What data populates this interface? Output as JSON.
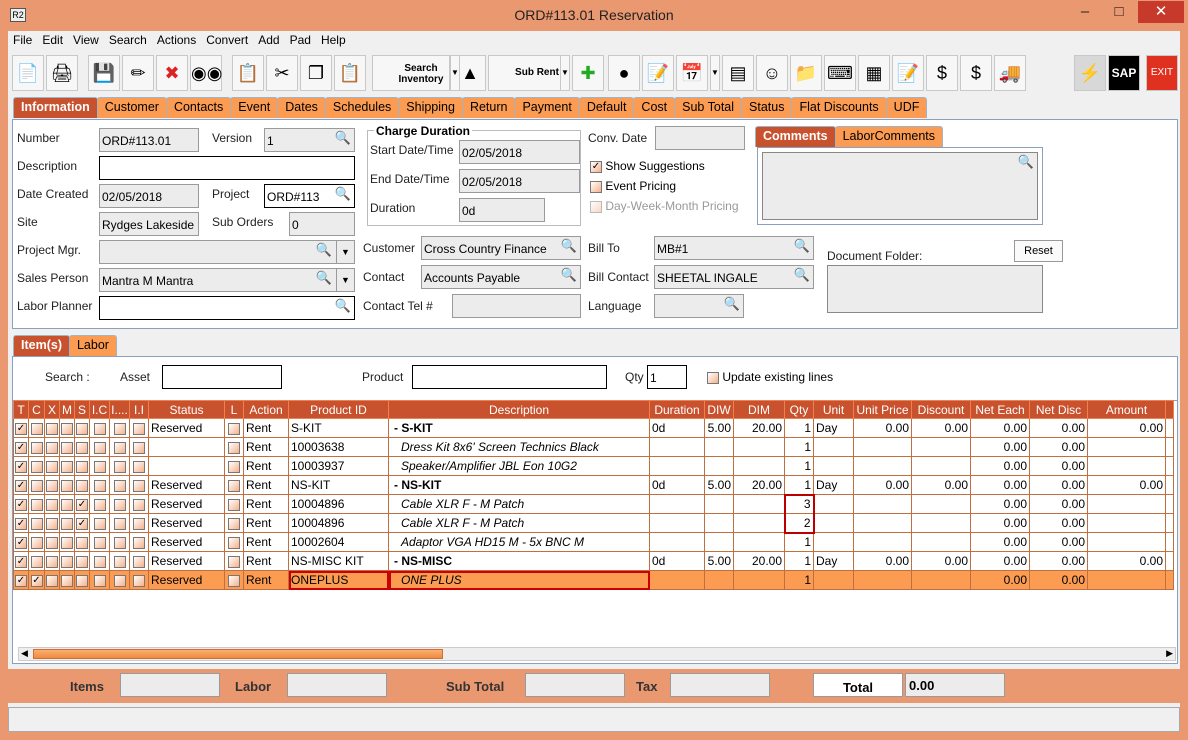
{
  "window": {
    "title": "ORD#113.01 Reservation",
    "app_icon": "R2",
    "colors": {
      "frame": "#ea9870",
      "tab": "#fb9c52",
      "active_tab": "#c8512e",
      "header": "#c8512e",
      "highlight": "#cc0000"
    }
  },
  "menu": [
    "File",
    "Edit",
    "View",
    "Search",
    "Actions",
    "Convert",
    "Add",
    "Pad",
    "Help"
  ],
  "toolbar": {
    "search_inventory": "Search Inventory",
    "sub_rent": "Sub Rent",
    "sap": "SAP",
    "exit": "EXIT",
    "icons": [
      "new-document-icon",
      "print-icon",
      "save-icon",
      "edit-pencil-icon",
      "delete-icon",
      "binoculars-icon",
      "copy-convert-icon",
      "cut-icon",
      "copy-icon",
      "paste-icon",
      "search-inventory-icon",
      "shapes-icon",
      "sub-rent-icon",
      "add-remove-icon",
      "help-balls-icon",
      "notepad-icon",
      "calendar-icon",
      "hierarchy-icon",
      "smiley-icon",
      "folder-clock-icon",
      "keyboard-key-icon",
      "stacked-boxes-icon",
      "edit-document-icon",
      "payment-forward-icon",
      "invoice-dollar-icon",
      "truck-icon",
      "lightning-icon",
      "sap-icon",
      "exit-icon"
    ]
  },
  "tabs": [
    "Information",
    "Customer",
    "Contacts",
    "Event",
    "Dates",
    "Schedules",
    "Shipping",
    "Return",
    "Payment",
    "Default",
    "Cost",
    "Sub Total",
    "Status",
    "Flat Discounts",
    "UDF"
  ],
  "info": {
    "number_label": "Number",
    "number": "ORD#113.01",
    "version_label": "Version",
    "version": "1",
    "description_label": "Description",
    "description": "",
    "date_created_label": "Date Created",
    "date_created": "02/05/2018",
    "project_label": "Project",
    "project": "ORD#113",
    "site_label": "Site",
    "site": "Rydges Lakeside",
    "sub_orders_label": "Sub Orders",
    "sub_orders": "0",
    "project_mgr_label": "Project Mgr.",
    "project_mgr": "",
    "sales_person_label": "Sales Person",
    "sales_person": "Mantra M Mantra",
    "labor_planner_label": "Labor Planner",
    "labor_planner": "",
    "charge_duration_label": "Charge Duration",
    "start_label": "Start Date/Time",
    "start": "02/05/2018",
    "end_label": "End Date/Time",
    "end": "02/05/2018",
    "duration_label": "Duration",
    "duration": "0d",
    "customer_label": "Customer",
    "customer": "Cross Country Finance",
    "contact_label": "Contact",
    "contact": "Accounts Payable",
    "contact_tel_label": "Contact Tel #",
    "contact_tel": "",
    "conv_date_label": "Conv. Date",
    "conv_date": "",
    "show_suggestions": "Show Suggestions",
    "event_pricing": "Event Pricing",
    "dwm_pricing": "Day-Week-Month Pricing",
    "bill_to_label": "Bill To",
    "bill_to": "MB#1",
    "bill_contact_label": "Bill Contact",
    "bill_contact": "SHEETAL INGALE",
    "language_label": "Language",
    "language": "",
    "comments_tab": "Comments",
    "labor_comments_tab": "LaborComments",
    "document_folder_label": "Document Folder:",
    "reset": "Reset"
  },
  "item_tabs": [
    "Item(s)",
    "Labor"
  ],
  "search": {
    "label": "Search :",
    "asset_label": "Asset",
    "asset": "",
    "product_label": "Product",
    "product": "",
    "qty_label": "Qty",
    "qty": "1",
    "update_label": "Update existing lines"
  },
  "columns": [
    "T",
    "C",
    "X",
    "M",
    "S",
    "I.C",
    "I....",
    "I.I",
    "Status",
    "L",
    "Action",
    "Product ID",
    "Description",
    "Duration",
    "DIW",
    "DIM",
    "Qty",
    "Unit",
    "Unit Price",
    "Discount",
    "Net Each",
    "Net Disc",
    "Amount",
    ""
  ],
  "rows": [
    {
      "checks": [
        1,
        0,
        0,
        0,
        0,
        0,
        0,
        0
      ],
      "status": "Reserved",
      "action": "Rent",
      "product_id": "S-KIT",
      "description": "-  S-KIT",
      "kit": true,
      "duration": "0d",
      "diw": "5.00",
      "dim": "20.00",
      "qty": "1",
      "unit": "Day",
      "unit_price": "0.00",
      "discount": "0.00",
      "net_each": "0.00",
      "net_disc": "0.00",
      "amount": "0.00"
    },
    {
      "checks": [
        1,
        0,
        0,
        0,
        0,
        0,
        0,
        0
      ],
      "status": "",
      "action": "Rent",
      "product_id": "10003638",
      "description": "Dress Kit 8x6' Screen Technics Black",
      "duration": "",
      "diw": "",
      "dim": "",
      "qty": "1",
      "unit": "",
      "unit_price": "",
      "discount": "",
      "net_each": "0.00",
      "net_disc": "0.00",
      "amount": ""
    },
    {
      "checks": [
        1,
        0,
        0,
        0,
        0,
        0,
        0,
        0
      ],
      "status": "",
      "action": "Rent",
      "product_id": "10003937",
      "description": "Speaker/Amplifier JBL Eon 10G2",
      "duration": "",
      "diw": "",
      "dim": "",
      "qty": "1",
      "unit": "",
      "unit_price": "",
      "discount": "",
      "net_each": "0.00",
      "net_disc": "0.00",
      "amount": ""
    },
    {
      "checks": [
        1,
        0,
        0,
        0,
        0,
        0,
        0,
        0
      ],
      "status": "Reserved",
      "action": "Rent",
      "product_id": "NS-KIT",
      "description": "-  NS-KIT",
      "kit": true,
      "duration": "0d",
      "diw": "5.00",
      "dim": "20.00",
      "qty": "1",
      "unit": "Day",
      "unit_price": "0.00",
      "discount": "0.00",
      "net_each": "0.00",
      "net_disc": "0.00",
      "amount": "0.00"
    },
    {
      "checks": [
        1,
        0,
        0,
        0,
        1,
        0,
        0,
        0
      ],
      "status": "Reserved",
      "action": "Rent",
      "product_id": "10004896",
      "description": "Cable XLR F - M Patch",
      "duration": "",
      "diw": "",
      "dim": "",
      "qty": "3",
      "unit": "",
      "unit_price": "",
      "discount": "",
      "net_each": "0.00",
      "net_disc": "0.00",
      "amount": ""
    },
    {
      "checks": [
        1,
        0,
        0,
        0,
        1,
        0,
        0,
        0
      ],
      "status": "Reserved",
      "action": "Rent",
      "product_id": "10004896",
      "description": "Cable XLR F - M Patch",
      "duration": "",
      "diw": "",
      "dim": "",
      "qty": "2",
      "unit": "",
      "unit_price": "",
      "discount": "",
      "net_each": "0.00",
      "net_disc": "0.00",
      "amount": ""
    },
    {
      "checks": [
        1,
        0,
        0,
        0,
        0,
        0,
        0,
        0
      ],
      "status": "Reserved",
      "action": "Rent",
      "product_id": "10002604",
      "description": "Adaptor VGA HD15 M - 5x BNC M",
      "duration": "",
      "diw": "",
      "dim": "",
      "qty": "1",
      "unit": "",
      "unit_price": "",
      "discount": "",
      "net_each": "0.00",
      "net_disc": "0.00",
      "amount": ""
    },
    {
      "checks": [
        1,
        0,
        0,
        0,
        0,
        0,
        0,
        0
      ],
      "status": "Reserved",
      "action": "Rent",
      "product_id": "NS-MISC KIT",
      "description": "-  NS-MISC",
      "kit": true,
      "duration": "0d",
      "diw": "5.00",
      "dim": "20.00",
      "qty": "1",
      "unit": "Day",
      "unit_price": "0.00",
      "discount": "0.00",
      "net_each": "0.00",
      "net_disc": "0.00",
      "amount": "0.00"
    },
    {
      "checks": [
        1,
        1,
        0,
        0,
        0,
        0,
        0,
        0
      ],
      "status": "Reserved",
      "action": "Rent",
      "product_id": "ONEPLUS",
      "description": "ONE PLUS",
      "selected": true,
      "duration": "",
      "diw": "",
      "dim": "",
      "qty": "1",
      "unit": "",
      "unit_price": "",
      "discount": "",
      "net_each": "0.00",
      "net_disc": "0.00",
      "amount": ""
    }
  ],
  "footer": {
    "items_label": "Items",
    "items": "",
    "labor_label": "Labor",
    "labor": "",
    "sub_total_label": "Sub Total",
    "sub_total": "",
    "tax_label": "Tax",
    "tax": "",
    "total_label": "Total",
    "total": "0.00"
  },
  "status_bar": ""
}
